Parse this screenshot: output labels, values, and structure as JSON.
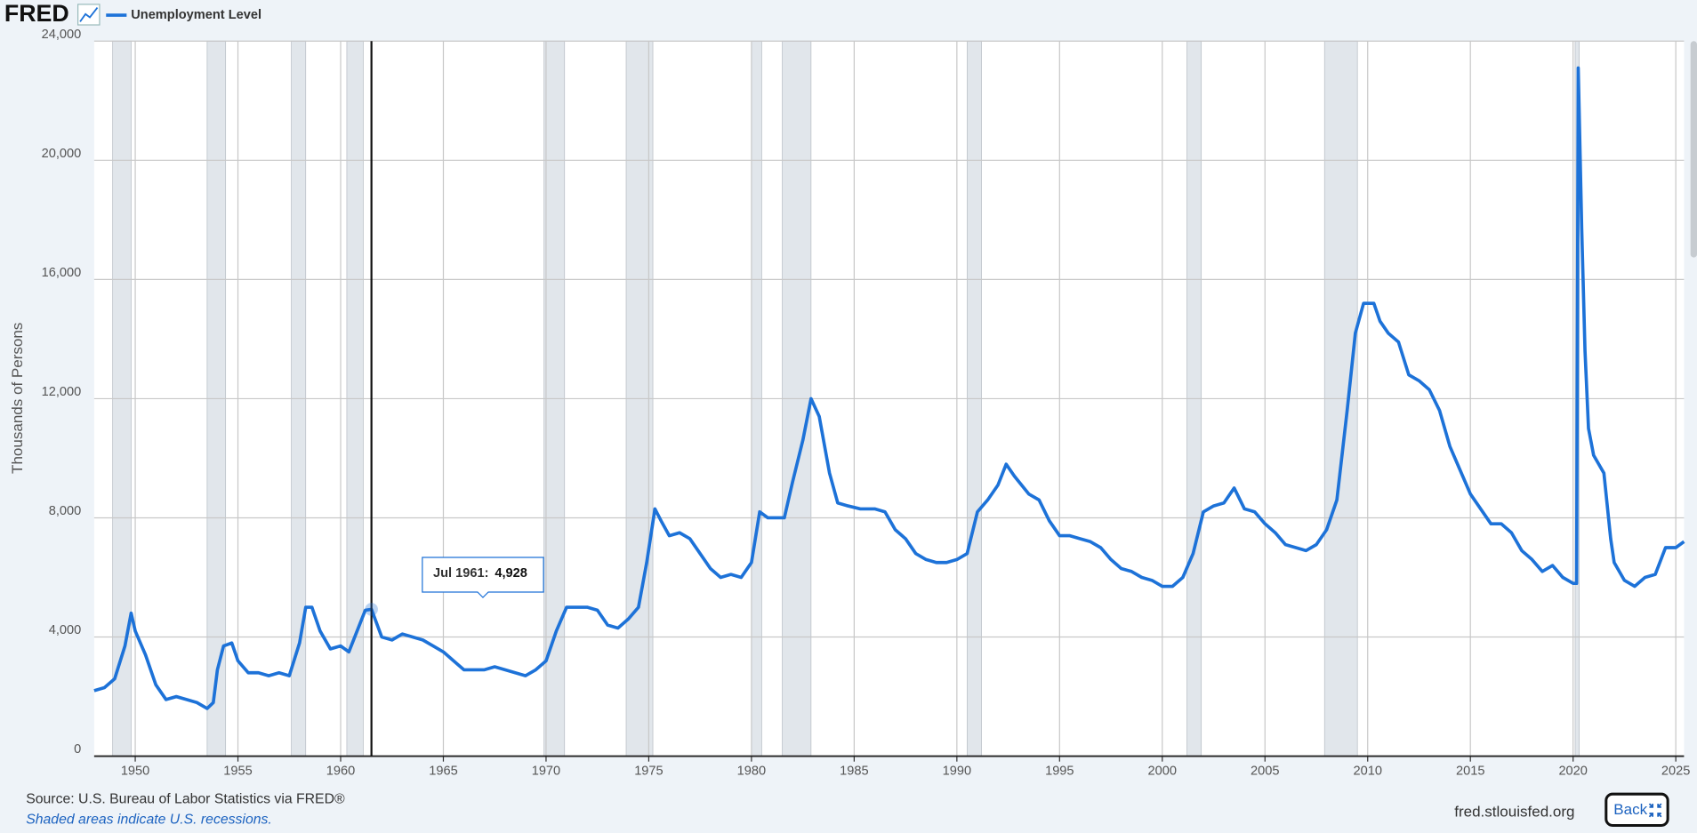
{
  "logo": "FRED",
  "chart_data": {
    "type": "line",
    "y_label": "Thousands of Persons",
    "series": [
      {
        "name": "Unemployment Level",
        "color": "#1d72d8",
        "x": [
          1948.0,
          1948.5,
          1949.0,
          1949.5,
          1949.8,
          1950.0,
          1950.5,
          1951.0,
          1951.5,
          1952.0,
          1952.5,
          1953.0,
          1953.5,
          1953.8,
          1954.0,
          1954.3,
          1954.7,
          1955.0,
          1955.5,
          1956.0,
          1956.5,
          1957.0,
          1957.5,
          1958.0,
          1958.3,
          1958.6,
          1959.0,
          1959.5,
          1960.0,
          1960.4,
          1960.8,
          1961.2,
          1961.5,
          1962.0,
          1962.5,
          1963.0,
          1963.5,
          1964.0,
          1964.5,
          1965.0,
          1965.5,
          1966.0,
          1966.5,
          1967.0,
          1967.5,
          1968.0,
          1968.5,
          1969.0,
          1969.5,
          1970.0,
          1970.5,
          1971.0,
          1971.5,
          1972.0,
          1972.5,
          1973.0,
          1973.5,
          1974.0,
          1974.5,
          1974.9,
          1975.3,
          1975.6,
          1976.0,
          1976.5,
          1977.0,
          1977.5,
          1978.0,
          1978.5,
          1979.0,
          1979.5,
          1980.0,
          1980.4,
          1980.8,
          1981.2,
          1981.6,
          1982.0,
          1982.5,
          1982.9,
          1983.3,
          1983.8,
          1984.2,
          1984.7,
          1985.3,
          1986.0,
          1986.5,
          1987.0,
          1987.5,
          1988.0,
          1988.5,
          1989.0,
          1989.5,
          1990.0,
          1990.5,
          1991.0,
          1991.5,
          1992.0,
          1992.4,
          1992.8,
          1993.5,
          1994.0,
          1994.5,
          1995.0,
          1995.5,
          1996.0,
          1996.5,
          1997.0,
          1997.5,
          1998.0,
          1998.5,
          1999.0,
          1999.5,
          2000.0,
          2000.5,
          2001.0,
          2001.5,
          2002.0,
          2002.5,
          2003.0,
          2003.5,
          2004.0,
          2004.5,
          2005.0,
          2005.5,
          2006.0,
          2006.5,
          2007.0,
          2007.5,
          2008.0,
          2008.5,
          2009.0,
          2009.4,
          2009.8,
          2010.3,
          2010.6,
          2011.0,
          2011.5,
          2012.0,
          2012.5,
          2013.0,
          2013.5,
          2014.0,
          2014.5,
          2015.0,
          2015.5,
          2016.0,
          2016.5,
          2017.0,
          2017.5,
          2018.0,
          2018.5,
          2019.0,
          2019.5,
          2020.0,
          2020.17,
          2020.25,
          2020.42,
          2020.58,
          2020.75,
          2021.0,
          2021.5,
          2021.83,
          2022.0,
          2022.5,
          2023.0,
          2023.5,
          2024.0,
          2024.5,
          2025.0,
          2025.4
        ],
        "values": [
          2200,
          2300,
          2600,
          3700,
          4800,
          4200,
          3400,
          2400,
          1900,
          2000,
          1900,
          1800,
          1600,
          1800,
          2900,
          3700,
          3800,
          3200,
          2800,
          2800,
          2700,
          2800,
          2700,
          3800,
          5000,
          5000,
          4200,
          3600,
          3700,
          3500,
          4200,
          4900,
          4928,
          4000,
          3900,
          4100,
          4000,
          3900,
          3700,
          3500,
          3200,
          2900,
          2900,
          2900,
          3000,
          2900,
          2800,
          2700,
          2900,
          3200,
          4200,
          5000,
          5000,
          5000,
          4900,
          4400,
          4300,
          4600,
          5000,
          6500,
          8300,
          7900,
          7400,
          7500,
          7300,
          6800,
          6300,
          6000,
          6100,
          6000,
          6500,
          8200,
          8000,
          8000,
          8000,
          9200,
          10600,
          12000,
          11400,
          9500,
          8500,
          8400,
          8300,
          8300,
          8200,
          7600,
          7300,
          6800,
          6600,
          6500,
          6500,
          6600,
          6800,
          8200,
          8600,
          9100,
          9800,
          9400,
          8800,
          8600,
          7900,
          7400,
          7400,
          7300,
          7200,
          7000,
          6600,
          6300,
          6200,
          6000,
          5900,
          5700,
          5700,
          6000,
          6800,
          8200,
          8400,
          8500,
          9000,
          8300,
          8200,
          7800,
          7500,
          7100,
          7000,
          6900,
          7100,
          7600,
          8600,
          11600,
          14200,
          15200,
          15200,
          14600,
          14200,
          13900,
          12800,
          12600,
          12300,
          11600,
          10400,
          9600,
          8800,
          8300,
          7800,
          7800,
          7500,
          6900,
          6600,
          6200,
          6400,
          6000,
          5800,
          5800,
          23100,
          17700,
          13600,
          11000,
          10100,
          9500,
          7300,
          6500,
          5900,
          5700,
          6000,
          6100,
          7000,
          7000,
          7200
        ]
      }
    ],
    "recessions": [
      [
        1948.9,
        1949.8
      ],
      [
        1953.5,
        1954.4
      ],
      [
        1957.6,
        1958.3
      ],
      [
        1960.3,
        1961.1
      ],
      [
        1969.9,
        1970.9
      ],
      [
        1973.9,
        1975.2
      ],
      [
        1980.0,
        1980.5
      ],
      [
        1981.5,
        1982.9
      ],
      [
        1990.5,
        1991.2
      ],
      [
        2001.2,
        2001.9
      ],
      [
        2007.9,
        2009.5
      ],
      [
        2020.1,
        2020.3
      ]
    ],
    "recession_color": "#e1e6eb",
    "xlim": [
      1948,
      2025.4
    ],
    "xticks": [
      1950,
      1955,
      1960,
      1965,
      1970,
      1975,
      1980,
      1985,
      1990,
      1995,
      2000,
      2005,
      2010,
      2015,
      2020,
      2025
    ],
    "ylim": [
      0,
      24000
    ],
    "yticks": [
      0,
      {
        "value": 4000,
        "label": "4,000"
      },
      {
        "value": 8000,
        "label": "8,000"
      },
      {
        "value": 12000,
        "label": "12,000"
      },
      {
        "value": 16000,
        "label": "16,000"
      },
      {
        "value": 20000,
        "label": "20,000"
      },
      {
        "value": 24000,
        "label": "24,000"
      }
    ],
    "grid": true,
    "tooltip": {
      "x": 1961.5,
      "label": "Jul 1961:",
      "value": 4928,
      "value_label": "4,928"
    }
  },
  "footer": {
    "source": "Source: U.S. Bureau of Labor Statistics via FRED®",
    "note": "Shaded areas indicate U.S. recessions.",
    "site": "fred.stlouisfed.org",
    "button": "Back"
  }
}
